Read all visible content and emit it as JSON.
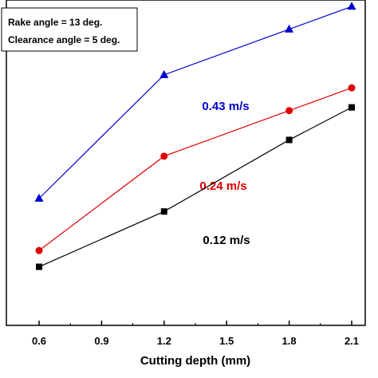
{
  "chart_data": {
    "type": "line",
    "xlabel": "Cutting depth (mm)",
    "ylabel": "",
    "x": [
      0.6,
      1.2,
      1.8,
      2.1
    ],
    "x_ticks": [
      "0.6",
      "0.9",
      "1.2",
      "1.5",
      "1.8",
      "2.1"
    ],
    "xlim": [
      0.45,
      2.2
    ],
    "ylim": [
      0,
      100
    ],
    "y_ticks_visible": false,
    "annotation_lines": [
      "Rake angle = 13 deg.",
      "Clearance angle = 5 deg."
    ],
    "annotation_placement": "top-left",
    "series": [
      {
        "name": "0.43 m/s",
        "color": "#0000cc",
        "marker": "triangle",
        "values": [
          39,
          77,
          91,
          98
        ]
      },
      {
        "name": "0.24 m/s",
        "color": "#e00000",
        "marker": "circle",
        "values": [
          23,
          52,
          66,
          73
        ]
      },
      {
        "name": "0.12 m/s",
        "color": "#000000",
        "marker": "square",
        "values": [
          18,
          35,
          57,
          67
        ]
      }
    ]
  }
}
